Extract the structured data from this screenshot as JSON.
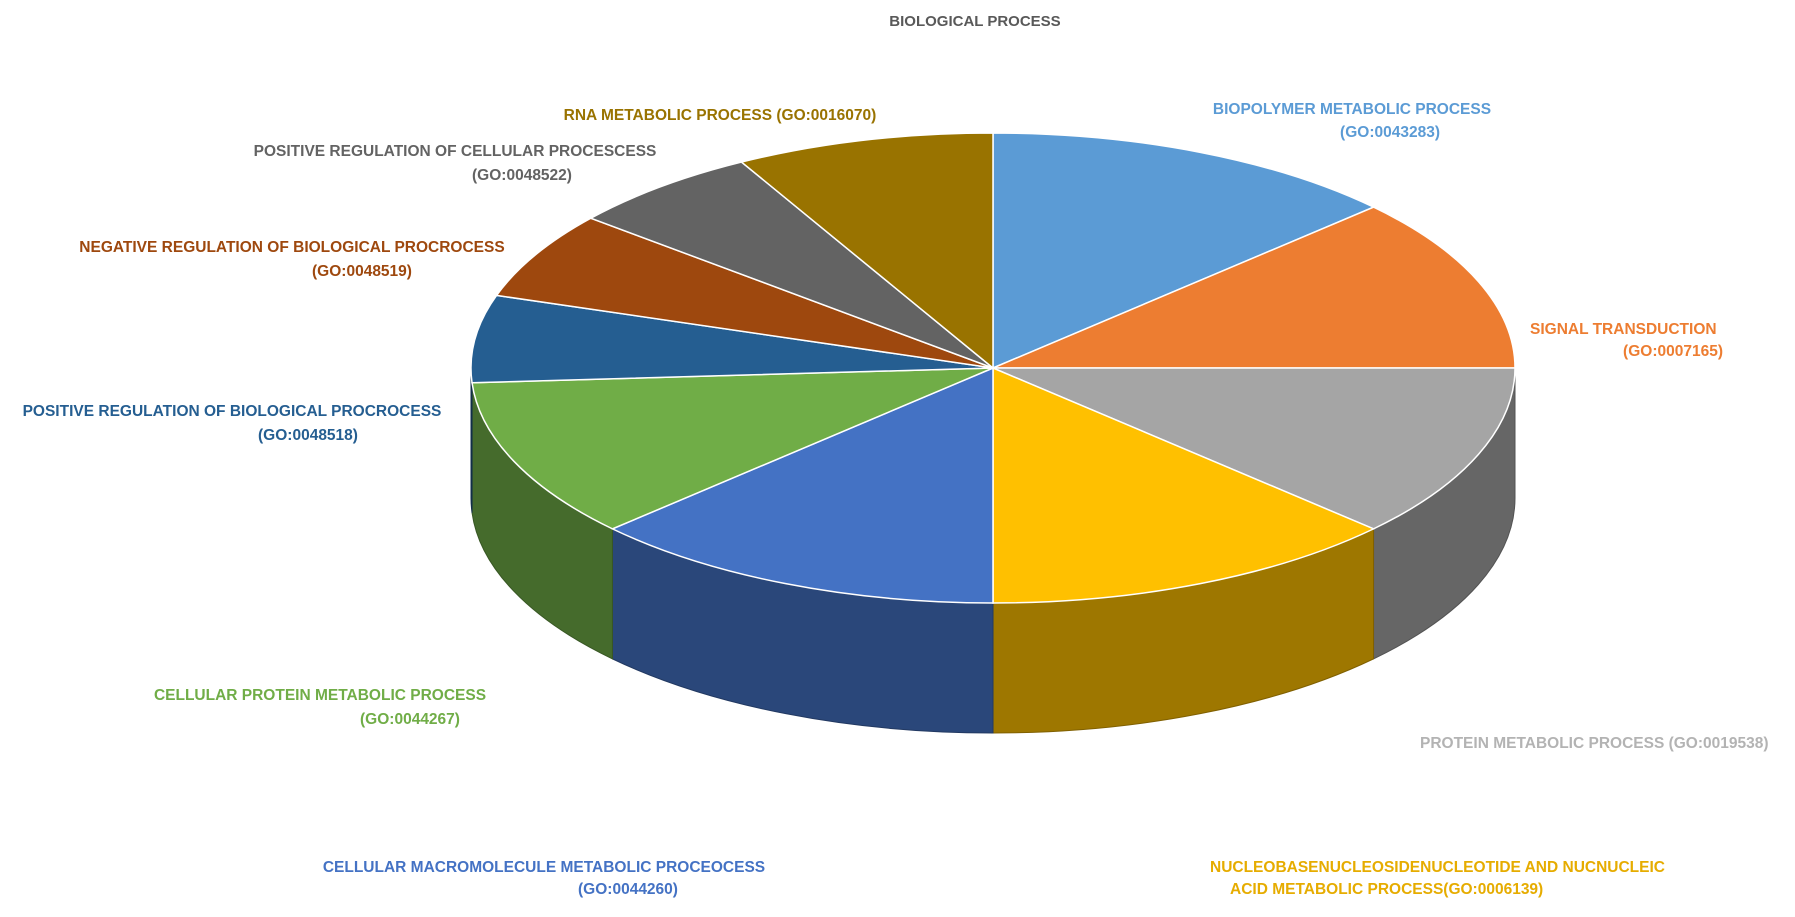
{
  "chart_data": {
    "type": "pie",
    "title": "BIOLOGICAL PROCESS",
    "three_d": true,
    "legend": "none",
    "slices": [
      {
        "label": "BIOPOLYMER METABOLIC PROCESS",
        "label_line2": "(GO:0043283)",
        "value": 13,
        "color": "#5b9bd5"
      },
      {
        "label": "SIGNAL TRANSDUCTION",
        "label_line2": "(GO:0007165)",
        "value": 12,
        "color": "#ed7d31"
      },
      {
        "label": "PROTEIN METABOLIC PROCESS (GO:0019538)",
        "label_line2": "",
        "value": 12,
        "color": "#a5a5a5"
      },
      {
        "label": "NUCLEOBASENUCLEOSIDENUCLEOTIDE AND NUCNUCLEIC",
        "label_line2": "ACID METABOLIC PROCESS(GO:0006139)",
        "value": 13,
        "color": "#ffc000"
      },
      {
        "label": "CELLULAR MACROMOLECULE METABOLIC PROCEOCESS",
        "label_line2": "(GO:0044260)",
        "value": 13,
        "color": "#4472c4"
      },
      {
        "label": "CELLULAR PROTEIN METABOLIC PROCESS",
        "label_line2": "(GO:0044267)",
        "value": 11,
        "color": "#70ad47"
      },
      {
        "label": "POSITIVE REGULATION OF BIOLOGICAL PROCROCESS",
        "label_line2": "(GO:0048518)",
        "value": 6,
        "color": "#255e91"
      },
      {
        "label": "NEGATIVE REGULATION OF BIOLOGICAL PROCROCESS",
        "label_line2": "(GO:0048519)",
        "value": 6,
        "color": "#9e480e"
      },
      {
        "label": "POSITIVE REGULATION OF CELLULAR PROCESCESS",
        "label_line2": "(GO:0048522)",
        "value": 6,
        "color": "#636363"
      },
      {
        "label": "RNA METABOLIC PROCESS (GO:0016070)",
        "label_line2": "",
        "value": 8,
        "color": "#997300"
      }
    ]
  }
}
